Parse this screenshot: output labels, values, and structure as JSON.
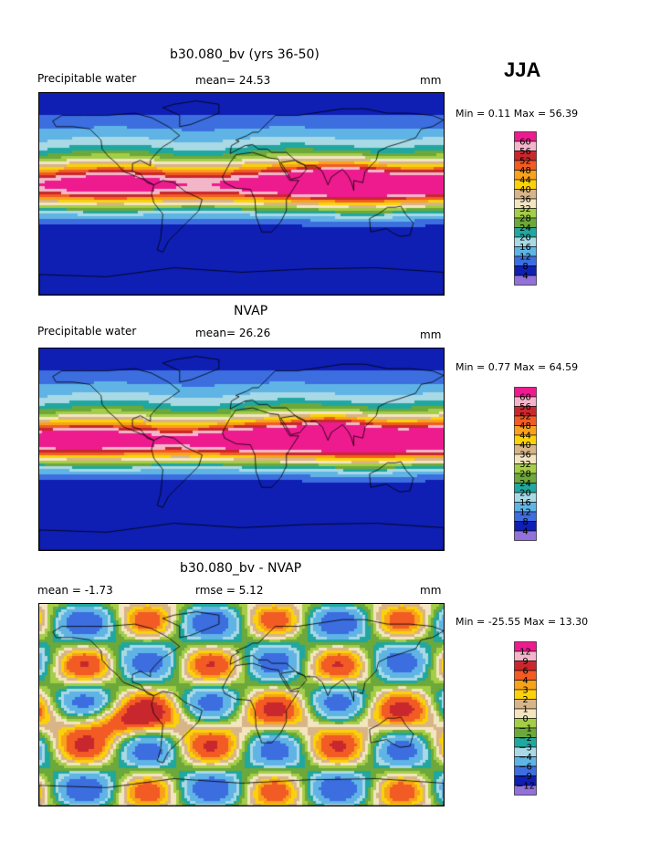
{
  "season": "JJA",
  "panels": [
    {
      "title": "b30.080_bv (yrs 36-50)",
      "left_label": "Precipitable water",
      "center_label": "mean=  24.53",
      "right_label": "mm",
      "minmax": "Min =   0.11 Max =  56.39"
    },
    {
      "title": "NVAP",
      "left_label": "Precipitable water",
      "center_label": "mean=  26.26",
      "right_label": "mm",
      "minmax": "Min =   0.77 Max =  64.59"
    },
    {
      "title": "b30.080_bv - NVAP",
      "left_label": "mean =   -1.73",
      "center_label": "rmse =    5.12",
      "right_label": "mm",
      "minmax": "Min = -25.55 Max =  13.30"
    }
  ],
  "colorbars": [
    {
      "ticks": [
        "60",
        "56",
        "52",
        "48",
        "44",
        "40",
        "36",
        "32",
        "28",
        "24",
        "20",
        "16",
        "12",
        "8",
        "4"
      ],
      "colors": [
        "#ee1b8f",
        "#f3b6c8",
        "#c8282d",
        "#f25b24",
        "#f8a21c",
        "#fbd20a",
        "#d7b588",
        "#f3e5c0",
        "#a4cd48",
        "#6ca83a",
        "#20a7a0",
        "#a8d9e5",
        "#5fb4e5",
        "#3c6ee0",
        "#0f1fb4",
        "#9271d8"
      ]
    },
    {
      "ticks": [
        "60",
        "56",
        "52",
        "48",
        "44",
        "40",
        "36",
        "32",
        "28",
        "24",
        "20",
        "16",
        "12",
        "8",
        "4"
      ],
      "colors": [
        "#ee1b8f",
        "#f3b6c8",
        "#c8282d",
        "#f25b24",
        "#f8a21c",
        "#fbd20a",
        "#d7b588",
        "#f3e5c0",
        "#a4cd48",
        "#6ca83a",
        "#20a7a0",
        "#a8d9e5",
        "#5fb4e5",
        "#3c6ee0",
        "#0f1fb4",
        "#9271d8"
      ]
    },
    {
      "ticks": [
        "12",
        "9",
        "6",
        "4",
        "3",
        "2",
        "1",
        "0",
        "−1",
        "−2",
        "−3",
        "−4",
        "−6",
        "−9",
        "−12"
      ],
      "colors": [
        "#ee1b8f",
        "#f3b6c8",
        "#c8282d",
        "#f25b24",
        "#f8a21c",
        "#fbd20a",
        "#d7b588",
        "#f3e5c0",
        "#a4cd48",
        "#6ca83a",
        "#20a7a0",
        "#a8d9e5",
        "#5fb4e5",
        "#3c6ee0",
        "#0f1fb4",
        "#9271d8"
      ]
    }
  ],
  "chart_data": [
    {
      "type": "heatmap",
      "title": "b30.080_bv (yrs 36-50)",
      "variable": "Precipitable water",
      "units": "mm",
      "mean": 24.53,
      "min": 0.11,
      "max": 56.39,
      "levels": [
        4,
        8,
        12,
        16,
        20,
        24,
        28,
        32,
        36,
        40,
        44,
        48,
        52,
        56,
        60
      ]
    },
    {
      "type": "heatmap",
      "title": "NVAP",
      "variable": "Precipitable water",
      "units": "mm",
      "mean": 26.26,
      "min": 0.77,
      "max": 64.59,
      "levels": [
        4,
        8,
        12,
        16,
        20,
        24,
        28,
        32,
        36,
        40,
        44,
        48,
        52,
        56,
        60
      ]
    },
    {
      "type": "heatmap",
      "title": "b30.080_bv - NVAP",
      "units": "mm",
      "mean": -1.73,
      "rmse": 5.12,
      "min": -25.55,
      "max": 13.3,
      "levels": [
        -12,
        -9,
        -6,
        -4,
        -3,
        -2,
        -1,
        0,
        1,
        2,
        3,
        4,
        6,
        9,
        12
      ]
    }
  ]
}
